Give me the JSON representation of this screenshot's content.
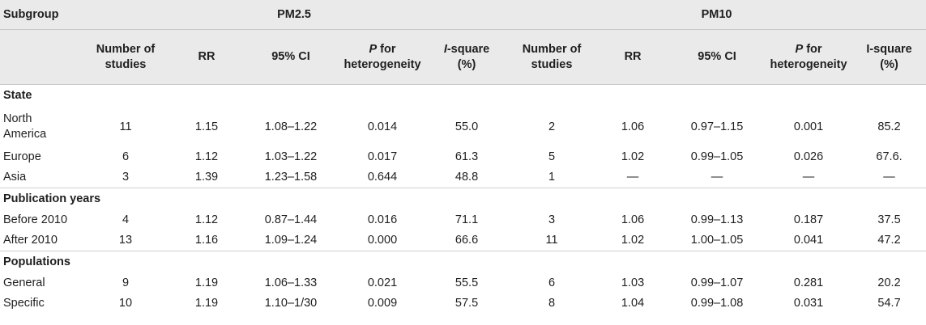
{
  "header": {
    "subgroup": "Subgroup",
    "pm25": "PM2.5",
    "pm10": "PM10",
    "columns": [
      {
        "line1": "Number of",
        "line2": "studies"
      },
      {
        "line1": "RR",
        "line2": ""
      },
      {
        "line1": "95% CI",
        "line2": ""
      },
      {
        "italic": "P",
        "line1": " for",
        "line2": "heterogeneity"
      },
      {
        "italic": "I",
        "line1": "-square",
        "line2": "(%)"
      },
      {
        "line1": "Number of",
        "line2": "studies"
      },
      {
        "line1": "RR",
        "line2": ""
      },
      {
        "line1": "95% CI",
        "line2": ""
      },
      {
        "italic": "P",
        "line1": " for",
        "line2": "heterogeneity"
      },
      {
        "line1": "I-square",
        "line2": "(%)"
      }
    ]
  },
  "sections": [
    {
      "title": "State",
      "rows": [
        {
          "label": "North America",
          "cells": [
            "11",
            "1.15",
            "1.08–1.22",
            "0.014",
            "55.0",
            "2",
            "1.06",
            "0.97–1.15",
            "0.001",
            "85.2"
          ]
        },
        {
          "label": "Europe",
          "cells": [
            "6",
            "1.12",
            "1.03–1.22",
            "0.017",
            "61.3",
            "5",
            "1.02",
            "0.99–1.05",
            "0.026",
            "67.6."
          ]
        },
        {
          "label": "Asia",
          "cells": [
            "3",
            "1.39",
            "1.23–1.58",
            "0.644",
            "48.8",
            "1",
            "—",
            "—",
            "—",
            "—"
          ]
        }
      ]
    },
    {
      "title": "Publication years",
      "rows": [
        {
          "label": "Before 2010",
          "cells": [
            "4",
            "1.12",
            "0.87–1.44",
            "0.016",
            "71.1",
            "3",
            "1.06",
            "0.99–1.13",
            "0.187",
            "37.5"
          ]
        },
        {
          "label": "After 2010",
          "cells": [
            "13",
            "1.16",
            "1.09–1.24",
            "0.000",
            "66.6",
            "11",
            "1.02",
            "1.00–1.05",
            "0.041",
            "47.2"
          ]
        }
      ]
    },
    {
      "title": "Populations",
      "rows": [
        {
          "label": "General",
          "cells": [
            "9",
            "1.19",
            "1.06–1.33",
            "0.021",
            "55.5",
            "6",
            "1.03",
            "0.99–1.07",
            "0.281",
            "20.2"
          ]
        },
        {
          "label": "Specific",
          "cells": [
            "10",
            "1.19",
            "1.10–1/30",
            "0.009",
            "57.5",
            "8",
            "1.04",
            "0.99–1.08",
            "0.031",
            "54.7"
          ]
        }
      ]
    }
  ]
}
